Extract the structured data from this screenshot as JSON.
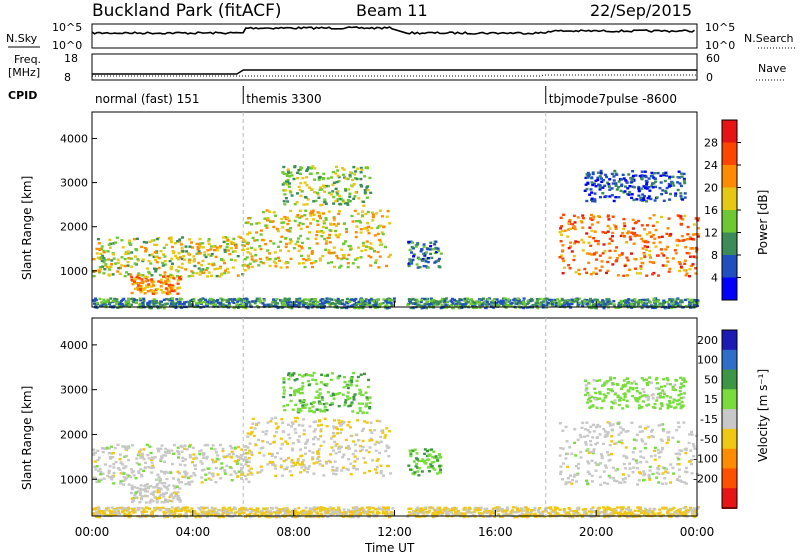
{
  "header": {
    "site": "Buckland Park (fitACF)",
    "beam": "Beam 11",
    "date": "22/Sep/2015"
  },
  "status_panels": {
    "nsky_label": "N.Sky",
    "nsearch_label": "N.Search",
    "freq_label_1": "Freq.",
    "freq_label_2": "[MHz]",
    "nave_label": "Nave",
    "cpid_label": "CPID",
    "noise_left_ticks": [
      "10^5",
      "10^0"
    ],
    "noise_right_ticks": [
      "10^5",
      "10^0"
    ],
    "freq_ticks": [
      "18",
      "8"
    ],
    "nave_ticks": [
      "60",
      "0"
    ],
    "cpid_segments": [
      {
        "label": "normal (fast) 151",
        "start_h": 0,
        "end_h": 6
      },
      {
        "label": "themis 3300",
        "start_h": 6,
        "end_h": 18
      },
      {
        "label": "tbjmode7pulse -8600",
        "start_h": 18,
        "end_h": 24
      }
    ],
    "data_gap_h": [
      11.95,
      12.45
    ]
  },
  "axes": {
    "ylabel": "Slant Range [km]",
    "y_ticks": [
      "1000",
      "2000",
      "3000",
      "4000"
    ],
    "xlabel": "Time UT",
    "x_ticks": [
      "00:00",
      "04:00",
      "08:00",
      "12:00",
      "16:00",
      "20:00",
      "00:00"
    ]
  },
  "power_colorbar": {
    "label": "Power [dB]",
    "ticks": [
      "4",
      "8",
      "12",
      "16",
      "20",
      "24",
      "28"
    ],
    "colors": [
      "#0000ff",
      "#2050c0",
      "#3c8c5a",
      "#6ec832",
      "#e6c814",
      "#ff8c00",
      "#ff4600",
      "#e61414"
    ]
  },
  "velocity_colorbar": {
    "label": "Velocity [m s⁻¹]",
    "ticks": [
      "200",
      "100",
      "50",
      "15",
      "-15",
      "-50",
      "-100",
      "-200"
    ],
    "colors": [
      "#1c1cb4",
      "#2e6ec8",
      "#3c9646",
      "#78dc3c",
      "#c8c8c8",
      "#f0c814",
      "#ff8c00",
      "#ff5000",
      "#e61414"
    ]
  },
  "chart_data": {
    "type": "heatmap",
    "title": "Buckland Park (fitACF)  Beam 11  22/Sep/2015",
    "xlabel": "Time UT",
    "ylabel": "Slant Range [km]",
    "x_range_h": [
      0,
      24
    ],
    "y_range_km": [
      180,
      4600
    ],
    "panels": [
      "Power [dB]",
      "Velocity [m s⁻¹]"
    ],
    "echo_regions": [
      {
        "t_start_h": 0,
        "t_end_h": 6.2,
        "range_km": [
          900,
          1800
        ],
        "power_db": 18,
        "velocity_ms": 0
      },
      {
        "t_start_h": 1.5,
        "t_end_h": 3.5,
        "range_km": [
          500,
          900
        ],
        "power_db": 24,
        "velocity_ms": 0
      },
      {
        "t_start_h": 6,
        "t_end_h": 11.8,
        "range_km": [
          1100,
          2400
        ],
        "power_db": 20,
        "velocity_ms": -10
      },
      {
        "t_start_h": 7.5,
        "t_end_h": 11,
        "range_km": [
          2500,
          3400
        ],
        "power_db": 16,
        "velocity_ms": 40
      },
      {
        "t_start_h": 12.5,
        "t_end_h": 13.8,
        "range_km": [
          1100,
          1700
        ],
        "power_db": 10,
        "velocity_ms": 45
      },
      {
        "t_start_h": 18.5,
        "t_end_h": 24,
        "range_km": [
          900,
          2300
        ],
        "power_db": 26,
        "velocity_ms": 0
      },
      {
        "t_start_h": 19.5,
        "t_end_h": 23.5,
        "range_km": [
          2600,
          3300
        ],
        "power_db": 8,
        "velocity_ms": 30
      },
      {
        "t_start_h": 0,
        "t_end_h": 24,
        "range_km": [
          180,
          400
        ],
        "power_db": 12,
        "velocity_ms": -20
      }
    ]
  }
}
